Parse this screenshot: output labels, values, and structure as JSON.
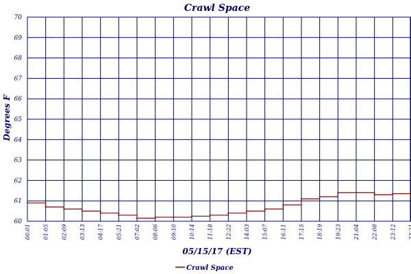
{
  "chart_data": {
    "type": "line",
    "title": "Crawl Space",
    "xlabel": "05/15/17 (EST)",
    "ylabel": "Degrees F",
    "ylim": [
      60,
      70
    ],
    "yticks": [
      "60",
      "61",
      "62",
      "63",
      "64",
      "65",
      "66",
      "67",
      "68",
      "69",
      "70"
    ],
    "xticks": [
      "00:01",
      "01:05",
      "02:09",
      "03:13",
      "04:17",
      "05:21",
      "07:02",
      "08:06",
      "09:10",
      "10:14",
      "11:18",
      "12:22",
      "14:03",
      "15:07",
      "16:11",
      "17:15",
      "18:19",
      "19:23",
      "21:04",
      "22:08",
      "23:12",
      "23:21"
    ],
    "grid": true,
    "legend_position": "bottom",
    "colors": {
      "series": "#8b0000",
      "grid": "#000080",
      "text": "#000080"
    },
    "series": [
      {
        "name": "Crawl Space",
        "x": [
          "00:01",
          "01:05",
          "02:09",
          "03:13",
          "04:17",
          "05:21",
          "07:02",
          "08:06",
          "09:10",
          "10:14",
          "11:18",
          "12:22",
          "14:03",
          "15:07",
          "16:11",
          "17:15",
          "18:19",
          "19:23",
          "21:04",
          "22:08",
          "23:12",
          "23:21"
        ],
        "values": [
          60.9,
          60.7,
          60.6,
          60.5,
          60.4,
          60.3,
          60.15,
          60.2,
          60.2,
          60.25,
          60.3,
          60.4,
          60.5,
          60.6,
          60.8,
          61.1,
          61.2,
          61.4,
          61.4,
          61.3,
          61.35,
          61.1
        ]
      }
    ]
  }
}
